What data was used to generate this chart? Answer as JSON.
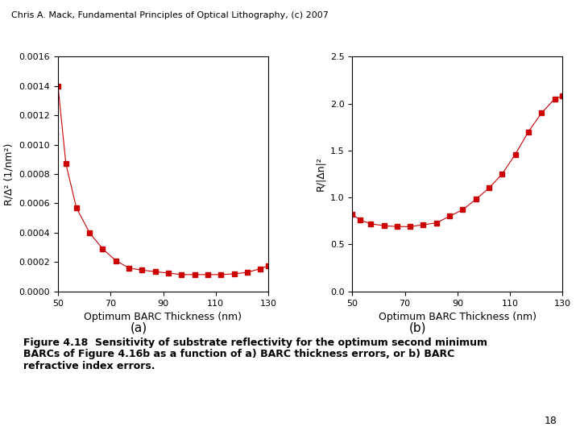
{
  "header": "Chris A. Mack, Fundamental Principles of Optical Lithography, (c) 2007",
  "footer_label": "18",
  "caption": "Figure 4.18  Sensitivity of substrate reflectivity for the optimum second minimum\nBARCs of Figure 4.16b as a function of a) BARC thickness errors, or b) BARC\nrefractive index errors.",
  "label_a": "(a)",
  "label_b": "(b)",
  "xlabel": "Optimum BARC Thickness (nm)",
  "ylabel_a": "R/Δ² (1/nm²)",
  "ylabel_b": "R/|Δn|²",
  "xlim": [
    50,
    130
  ],
  "x_ticks": [
    50,
    70,
    90,
    110,
    130
  ],
  "plot_a": {
    "x": [
      50,
      53,
      57,
      62,
      67,
      72,
      77,
      82,
      87,
      92,
      97,
      102,
      107,
      112,
      117,
      122,
      127,
      130
    ],
    "y": [
      0.0014,
      0.00087,
      0.00057,
      0.0004,
      0.00029,
      0.00021,
      0.00016,
      0.000145,
      0.000135,
      0.000125,
      0.000115,
      0.000115,
      0.000115,
      0.000115,
      0.00012,
      0.00013,
      0.000155,
      0.000175
    ],
    "ylim": [
      0.0,
      0.0016
    ],
    "yticks": [
      0.0,
      0.0002,
      0.0004,
      0.0006,
      0.0008,
      0.001,
      0.0012,
      0.0014,
      0.0016
    ]
  },
  "plot_b": {
    "x": [
      50,
      53,
      57,
      62,
      67,
      72,
      77,
      82,
      87,
      92,
      97,
      102,
      107,
      112,
      117,
      122,
      127,
      130
    ],
    "y": [
      0.82,
      0.76,
      0.72,
      0.7,
      0.69,
      0.69,
      0.71,
      0.73,
      0.8,
      0.87,
      0.98,
      1.1,
      1.25,
      1.46,
      1.7,
      1.9,
      2.05,
      2.08
    ],
    "ylim": [
      0.0,
      2.5
    ],
    "yticks": [
      0.0,
      0.5,
      1.0,
      1.5,
      2.0,
      2.5
    ]
  },
  "background_color": "#ffffff",
  "line_color": "#cc0000",
  "marker": "s",
  "markersize": 4,
  "linewidth": 0.8
}
